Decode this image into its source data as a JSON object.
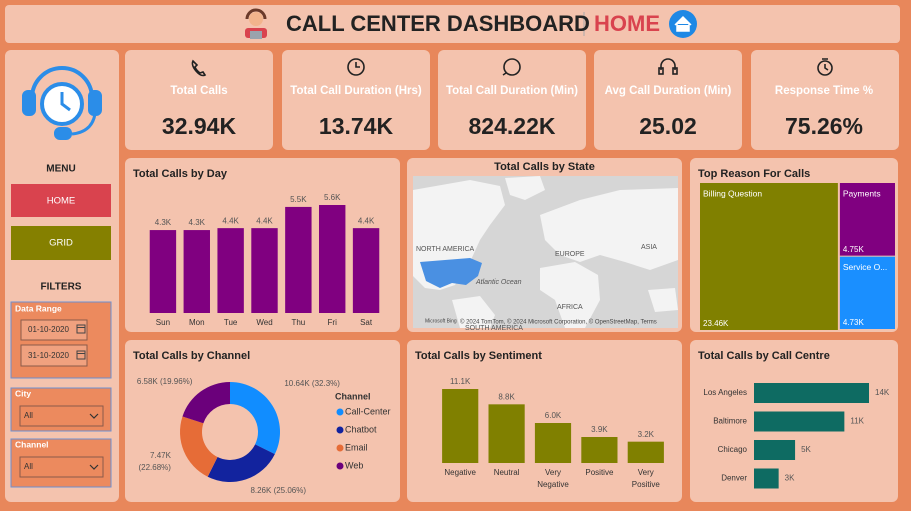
{
  "header": {
    "title": "CALL CENTER DASHBOARD",
    "page": "HOME"
  },
  "kpis": [
    {
      "label": "Total Calls",
      "value": "32.94K"
    },
    {
      "label": "Total Call Duration (Hrs)",
      "value": "13.74K"
    },
    {
      "label": "Total Call Duration (Min)",
      "value": "824.22K"
    },
    {
      "label": "Avg Call Duration (Min)",
      "value": "25.02"
    },
    {
      "label": "Response Time %",
      "value": "75.26%"
    }
  ],
  "sidebar": {
    "menu_title": "MENU",
    "menu_items": [
      "HOME",
      "GRID"
    ],
    "filters_title": "FILTERS",
    "filters": [
      {
        "label": "Data Range",
        "values": [
          "01-10-2020",
          "31-10-2020"
        ]
      },
      {
        "label": "City",
        "values": [
          "All"
        ]
      },
      {
        "label": "Channel",
        "values": [
          "All"
        ]
      }
    ]
  },
  "chart_data": [
    {
      "type": "bar",
      "title": "Total Calls by Day",
      "categories": [
        "Sun",
        "Mon",
        "Tue",
        "Wed",
        "Thu",
        "Fri",
        "Sat"
      ],
      "values": [
        4300,
        4300,
        4400,
        4400,
        5500,
        5600,
        4400
      ],
      "value_labels": [
        "4.3K",
        "4.3K",
        "4.4K",
        "4.4K",
        "5.5K",
        "5.6K",
        "4.4K"
      ],
      "color": "#800080"
    },
    {
      "type": "map",
      "title": "Total Calls by State",
      "labels": [
        "NORTH AMERICA",
        "EUROPE",
        "ASIA",
        "Atlantic Ocean",
        "AFRICA",
        "SOUTH AMERICA"
      ],
      "attribution": [
        "Microsoft Bing",
        "© 2024 TomTom, © 2024 Microsoft Corporation, © OpenStreetMap, Terms"
      ],
      "color": "#4A90E2"
    },
    {
      "type": "treemap",
      "title": "Top Reason For Calls",
      "categories": [
        "Billing Question",
        "Payments",
        "Service O..."
      ],
      "values": [
        23460,
        4750,
        4730
      ],
      "value_labels": [
        "23.46K",
        "4.75K",
        "4.73K"
      ],
      "colors": [
        "#808000",
        "#800080",
        "#1A8FFF"
      ]
    },
    {
      "type": "donut",
      "title": "Total Calls by Channel",
      "legend_title": "Channel",
      "categories": [
        "Call-Center",
        "Chatbot",
        "Email",
        "Web"
      ],
      "values": [
        10640,
        8260,
        7470,
        6580
      ],
      "value_labels": [
        "10.64K (32.3%)",
        "8.26K (25.06%)",
        "7.47K (22.68%)",
        "6.58K (19.96%)"
      ],
      "colors": [
        "#118DFF",
        "#12239E",
        "#E66C37",
        "#6B007B"
      ]
    },
    {
      "type": "bar",
      "title": "Total Calls by Sentiment",
      "categories": [
        "Negative",
        "Neutral",
        "Very Negative",
        "Positive",
        "Very Positive"
      ],
      "values": [
        11100,
        8800,
        6000,
        3900,
        3200
      ],
      "value_labels": [
        "11.1K",
        "8.8K",
        "6.0K",
        "3.9K",
        "3.2K"
      ],
      "color": "#808000"
    },
    {
      "type": "bar",
      "orientation": "horizontal",
      "title": "Total Calls by Call Centre",
      "categories": [
        "Los Angeles",
        "Baltimore",
        "Chicago",
        "Denver"
      ],
      "values": [
        14000,
        11000,
        5000,
        3000
      ],
      "value_labels": [
        "14K",
        "11K",
        "5K",
        "3K"
      ],
      "color": "#0E6B62"
    }
  ]
}
